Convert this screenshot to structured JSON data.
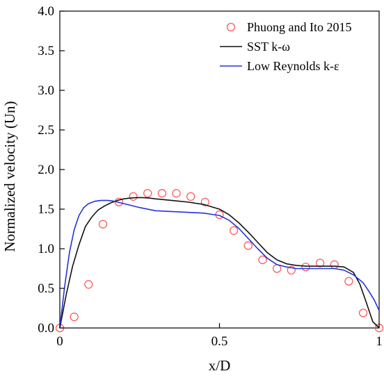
{
  "chart_data": {
    "type": "line",
    "xlabel": "x/D",
    "ylabel": "Normalized velocity (Un)",
    "xlim": [
      0,
      1
    ],
    "ylim": [
      0,
      4.0
    ],
    "x_ticks": [
      0,
      0.5,
      1
    ],
    "x_tick_labels": [
      "0",
      "0.5",
      "1"
    ],
    "y_ticks": [
      0,
      0.5,
      1,
      1.5,
      2,
      2.5,
      3,
      3.5,
      4
    ],
    "y_tick_labels": [
      "0.0",
      "0.5",
      "1.0",
      "1.5",
      "2.0",
      "2.5",
      "3.0",
      "3.5",
      "4.0"
    ],
    "grid": false,
    "legend_position": "top-right",
    "series": [
      {
        "name": "Phuong and Ito 2015",
        "kind": "scatter",
        "marker": "open-circle",
        "color": "#ff5a5a",
        "x": [
          0.0,
          0.045,
          0.09,
          0.135,
          0.185,
          0.23,
          0.275,
          0.32,
          0.365,
          0.41,
          0.455,
          0.5,
          0.545,
          0.59,
          0.635,
          0.68,
          0.725,
          0.77,
          0.815,
          0.86,
          0.905,
          0.95,
          1.0
        ],
        "y": [
          0.0,
          0.14,
          0.55,
          1.31,
          1.59,
          1.66,
          1.7,
          1.7,
          1.7,
          1.66,
          1.59,
          1.43,
          1.23,
          1.04,
          0.86,
          0.75,
          0.73,
          0.77,
          0.82,
          0.8,
          0.59,
          0.19,
          0.0
        ]
      },
      {
        "name": "SST k-ω",
        "kind": "line",
        "color": "#111111",
        "x": [
          0.0,
          0.02,
          0.04,
          0.06,
          0.08,
          0.1,
          0.12,
          0.14,
          0.16,
          0.18,
          0.2,
          0.22,
          0.24,
          0.26,
          0.28,
          0.3,
          0.35,
          0.4,
          0.45,
          0.5,
          0.53,
          0.56,
          0.59,
          0.62,
          0.65,
          0.68,
          0.71,
          0.74,
          0.77,
          0.8,
          0.83,
          0.86,
          0.89,
          0.92,
          0.94,
          0.96,
          0.98,
          1.0
        ],
        "y": [
          0.0,
          0.42,
          0.78,
          1.05,
          1.28,
          1.4,
          1.49,
          1.54,
          1.58,
          1.61,
          1.63,
          1.64,
          1.645,
          1.645,
          1.64,
          1.63,
          1.61,
          1.59,
          1.56,
          1.5,
          1.43,
          1.33,
          1.21,
          1.08,
          0.95,
          0.86,
          0.81,
          0.79,
          0.78,
          0.78,
          0.78,
          0.78,
          0.77,
          0.7,
          0.55,
          0.32,
          0.08,
          0.0
        ]
      },
      {
        "name": "Low Reynolds k-ε",
        "kind": "line",
        "color": "#2233dd",
        "x": [
          0.0,
          0.015,
          0.03,
          0.045,
          0.06,
          0.075,
          0.09,
          0.11,
          0.13,
          0.15,
          0.17,
          0.2,
          0.25,
          0.3,
          0.35,
          0.4,
          0.45,
          0.5,
          0.53,
          0.56,
          0.59,
          0.62,
          0.65,
          0.68,
          0.71,
          0.74,
          0.77,
          0.8,
          0.83,
          0.86,
          0.89,
          0.92,
          0.95,
          0.97,
          0.985,
          1.0
        ],
        "y": [
          0.0,
          0.52,
          0.95,
          1.24,
          1.42,
          1.52,
          1.57,
          1.6,
          1.61,
          1.61,
          1.6,
          1.57,
          1.52,
          1.48,
          1.47,
          1.46,
          1.45,
          1.42,
          1.36,
          1.26,
          1.13,
          1.0,
          0.88,
          0.8,
          0.77,
          0.75,
          0.75,
          0.75,
          0.75,
          0.75,
          0.73,
          0.67,
          0.57,
          0.45,
          0.35,
          0.22
        ]
      }
    ]
  }
}
